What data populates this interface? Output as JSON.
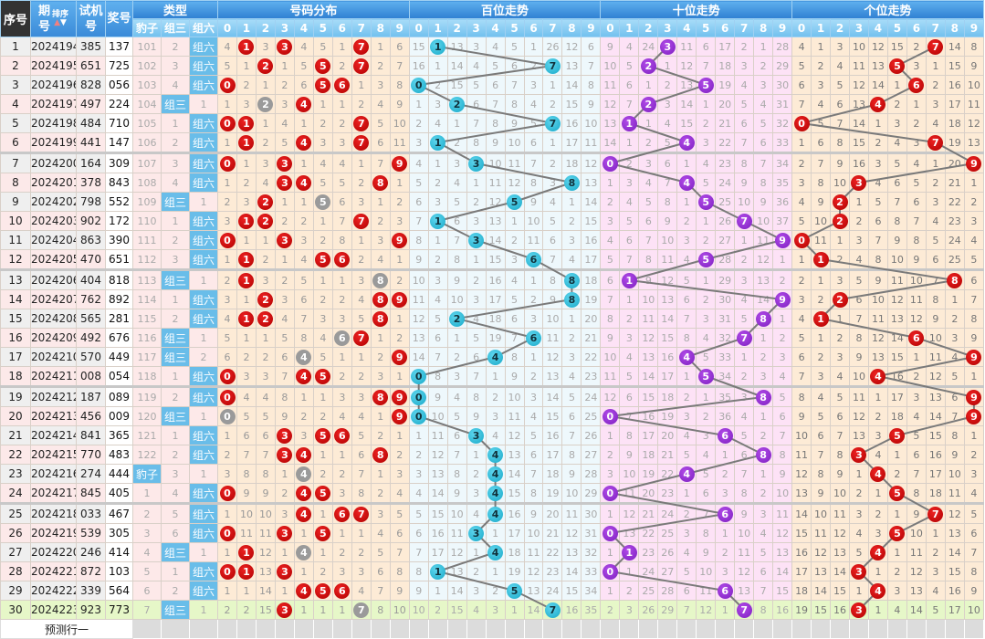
{
  "header": {
    "no": "序号",
    "issue_top": "期",
    "issue_bottom": "号",
    "sort_label": "排序",
    "trial_top": "试机",
    "trial_bottom": "号",
    "result": "奖号",
    "type": "类型",
    "type_cols": [
      "豹子",
      "组三",
      "组六"
    ],
    "dist": "号码分布",
    "bai": "百位走势",
    "shi": "十位走势",
    "ge": "个位走势",
    "digits": [
      "0",
      "1",
      "2",
      "3",
      "4",
      "5",
      "6",
      "7",
      "8",
      "9"
    ]
  },
  "type_labels": {
    "baozi": "豹子",
    "zusan": "组三",
    "zuliu": "组六"
  },
  "first_row_omissions": {
    "type": [
      101,
      2,
      null
    ],
    "dist": [
      4,
      null,
      3,
      null,
      4,
      5,
      1,
      null,
      1,
      6
    ],
    "bai": [
      15,
      null,
      13,
      3,
      4,
      5,
      1,
      26,
      12,
      6
    ],
    "shi": [
      9,
      4,
      24,
      null,
      11,
      6,
      17,
      2,
      1,
      28
    ],
    "ge": [
      4,
      1,
      3,
      10,
      12,
      15,
      2,
      null,
      14,
      8
    ]
  },
  "colors": {
    "dist_hit": "#c00000",
    "dist_repeat": "#9a9a9a",
    "bai_hit": "#1fb0cf",
    "shi_hit": "#8a2bd0",
    "ge_hit": "#c00000",
    "trend_line": "#7a7a7a",
    "current_row": "#e6f7c8"
  },
  "rows": [
    {
      "no": "1",
      "issue": "2024194",
      "trial": "385",
      "result": "137"
    },
    {
      "no": "2",
      "issue": "2024195",
      "trial": "651",
      "result": "725"
    },
    {
      "no": "3",
      "issue": "2024196",
      "trial": "828",
      "result": "056"
    },
    {
      "no": "4",
      "issue": "2024197",
      "trial": "497",
      "result": "224"
    },
    {
      "no": "5",
      "issue": "2024198",
      "trial": "484",
      "result": "710"
    },
    {
      "no": "6",
      "issue": "2024199",
      "trial": "441",
      "result": "147"
    },
    {
      "no": "7",
      "issue": "2024200",
      "trial": "164",
      "result": "309"
    },
    {
      "no": "8",
      "issue": "2024201",
      "trial": "378",
      "result": "843"
    },
    {
      "no": "9",
      "issue": "2024202",
      "trial": "798",
      "result": "552"
    },
    {
      "no": "10",
      "issue": "2024203",
      "trial": "902",
      "result": "172"
    },
    {
      "no": "11",
      "issue": "2024204",
      "trial": "863",
      "result": "390"
    },
    {
      "no": "12",
      "issue": "2024205",
      "trial": "470",
      "result": "651"
    },
    {
      "no": "13",
      "issue": "2024206",
      "trial": "404",
      "result": "818"
    },
    {
      "no": "14",
      "issue": "2024207",
      "trial": "762",
      "result": "892"
    },
    {
      "no": "15",
      "issue": "2024208",
      "trial": "565",
      "result": "281"
    },
    {
      "no": "16",
      "issue": "2024209",
      "trial": "492",
      "result": "676"
    },
    {
      "no": "17",
      "issue": "2024210",
      "trial": "570",
      "result": "449"
    },
    {
      "no": "18",
      "issue": "2024211",
      "trial": "008",
      "result": "054"
    },
    {
      "no": "19",
      "issue": "2024212",
      "trial": "187",
      "result": "089"
    },
    {
      "no": "20",
      "issue": "2024213",
      "trial": "456",
      "result": "009"
    },
    {
      "no": "21",
      "issue": "2024214",
      "trial": "841",
      "result": "365"
    },
    {
      "no": "22",
      "issue": "2024215",
      "trial": "770",
      "result": "483"
    },
    {
      "no": "23",
      "issue": "2024216",
      "trial": "274",
      "result": "444"
    },
    {
      "no": "24",
      "issue": "2024217",
      "trial": "845",
      "result": "405"
    },
    {
      "no": "25",
      "issue": "2024218",
      "trial": "033",
      "result": "467"
    },
    {
      "no": "26",
      "issue": "2024219",
      "trial": "539",
      "result": "305"
    },
    {
      "no": "27",
      "issue": "2024220",
      "trial": "246",
      "result": "414"
    },
    {
      "no": "28",
      "issue": "2024221",
      "trial": "872",
      "result": "103"
    },
    {
      "no": "29",
      "issue": "2024222",
      "trial": "339",
      "result": "564"
    },
    {
      "no": "30",
      "issue": "2024223",
      "trial": "923",
      "result": "773"
    }
  ],
  "prediction_row_label": "预测行一"
}
